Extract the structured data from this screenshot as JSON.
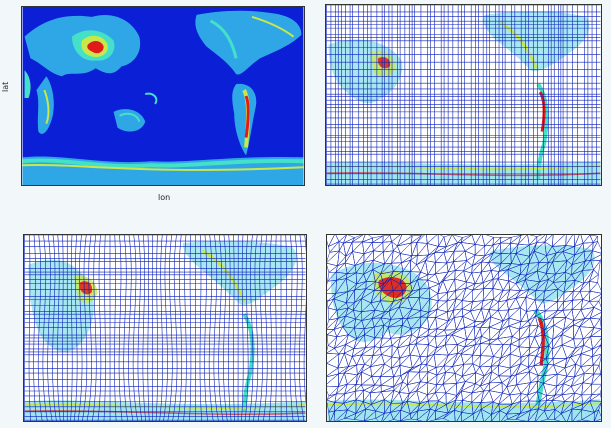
{
  "panels": [
    {
      "id": "p1",
      "style": "smooth-field",
      "xlabel": "lon",
      "ylabel": "lat"
    },
    {
      "id": "p2",
      "style": "rectilinear-grid"
    },
    {
      "id": "p3",
      "style": "curvilinear-grid"
    },
    {
      "id": "p4",
      "style": "triangular-mesh"
    }
  ],
  "colors": {
    "ocean": "#0a1fd6",
    "grid_line": "#0b1fb8",
    "land_low": "#2fa7e6",
    "land_mid": "#45e0c8",
    "land_high": "#c8e84a",
    "peak": "#e11a1a",
    "white": "#ffffff"
  }
}
